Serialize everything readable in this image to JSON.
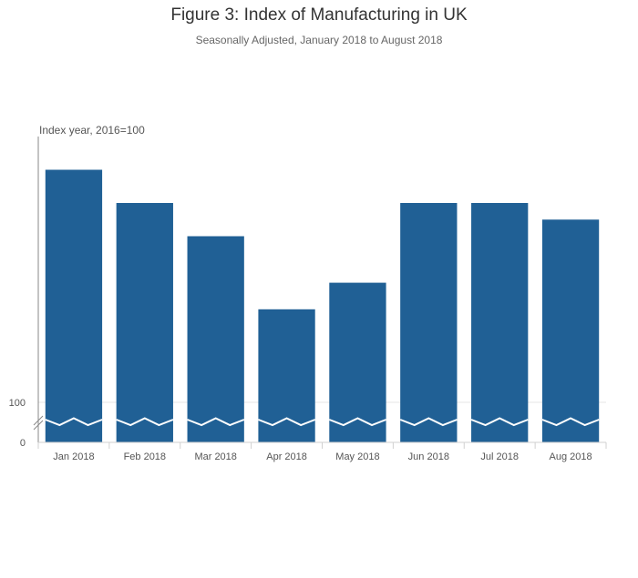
{
  "chart_data": {
    "type": "bar",
    "title": "Figure 3: Index of Manufacturing in UK",
    "subtitle": "Seasonally Adjusted, January 2018 to August 2018",
    "ylabel": "Index year, 2016=100",
    "xlabel": "",
    "categories": [
      "Jan 2018",
      "Feb 2018",
      "Mar 2018",
      "Apr 2018",
      "May 2018",
      "Jun 2018",
      "Jul 2018",
      "Aug 2018"
    ],
    "values": [
      103.5,
      103.0,
      102.5,
      101.4,
      101.8,
      103.0,
      103.0,
      102.75
    ],
    "ylim": [
      100,
      104
    ],
    "y_ticks": [
      "100",
      "0"
    ],
    "axis_break": true,
    "grid": false,
    "bar_color": "#206095"
  }
}
